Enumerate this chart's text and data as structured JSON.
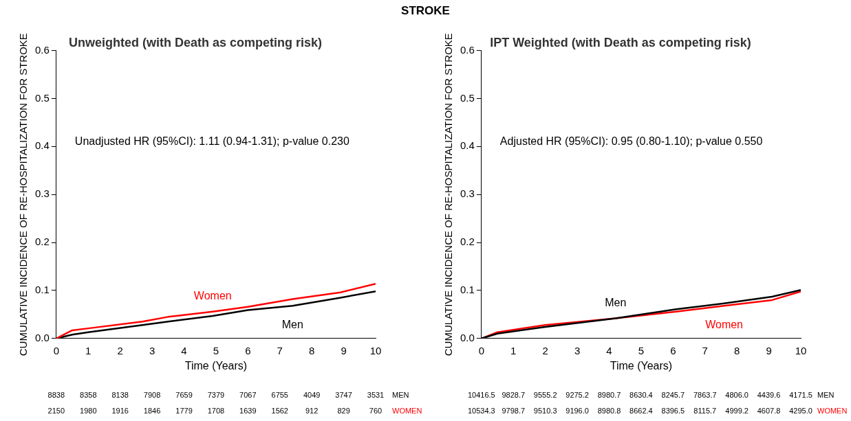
{
  "chart_data": [
    {
      "type": "line",
      "subtitle": "Unweighted (with Death as competing risk)",
      "xlabel": "Time (Years)",
      "ylabel": "CUMULATIVE INCIDENCE OF RE-HOSPITALIZATION FOR STROKE",
      "xlim": [
        0,
        10
      ],
      "xticks": [
        0,
        1,
        2,
        3,
        4,
        5,
        6,
        7,
        8,
        9,
        10
      ],
      "ylim": [
        0,
        0.6
      ],
      "yticks": [
        {
          "value": 0,
          "label": "0.0"
        },
        0.1,
        0.2,
        0.3,
        0.4,
        0.5,
        0.6
      ],
      "grid": false,
      "legend": false,
      "marker": "none",
      "line_style": "solid",
      "x": [
        0,
        0.5,
        1,
        2.7,
        3.5,
        4.9,
        6,
        7.4,
        8.9,
        10
      ],
      "series": [
        {
          "name": "Women",
          "color": "#ff0000",
          "values": [
            0,
            0.017,
            0.021,
            0.035,
            0.045,
            0.056,
            0.066,
            0.082,
            0.096,
            0.114
          ]
        },
        {
          "name": "Men",
          "color": "#000000",
          "values": [
            0,
            0.008,
            0.013,
            0.028,
            0.035,
            0.047,
            0.059,
            0.068,
            0.085,
            0.098
          ]
        }
      ],
      "annotations": [
        "STROKE",
        "Unadjusted HR (95%CI): 1.11 (0.94-1.31); p-value 0.230",
        "8838",
        "8358",
        "8138",
        "7908",
        "7659",
        "7379",
        "7067",
        "6755",
        "4049",
        "3747",
        "3531",
        "MEN",
        "2150",
        "1980",
        "1916",
        "1846",
        "1779",
        "1708",
        "1639",
        "1562",
        "912",
        "829",
        "760",
        "WOMEN"
      ]
    },
    {
      "type": "line",
      "subtitle": "IPT Weighted (with Death as competing risk)",
      "xlabel": "Time (Years)",
      "ylabel": "CUMULATIVE INCIDENCE OF RE-HOSPITALIZATION FOR STROKE",
      "xlim": [
        0,
        10
      ],
      "xticks": [
        0,
        1,
        2,
        3,
        4,
        5,
        6,
        7,
        8,
        9,
        10
      ],
      "ylim": [
        0,
        0.6
      ],
      "yticks": [
        {
          "value": 0,
          "label": "0.0"
        },
        0.1,
        0.2,
        0.3,
        0.4,
        0.5,
        0.6
      ],
      "grid": false,
      "legend": false,
      "marker": "none",
      "line_style": "solid",
      "x": [
        0,
        0.5,
        2,
        4.2,
        6.1,
        7.6,
        9.1,
        10
      ],
      "series": [
        {
          "name": "Men",
          "color": "#000000",
          "values": [
            0,
            0.01,
            0.024,
            0.042,
            0.061,
            0.073,
            0.087,
            0.101
          ]
        },
        {
          "name": "Women",
          "color": "#ff0000",
          "values": [
            0,
            0.013,
            0.028,
            0.042,
            0.056,
            0.068,
            0.08,
            0.098
          ]
        }
      ],
      "annotations": [
        "Adjusted HR (95%CI): 0.95 (0.80-1.10); p-value 0.550",
        "10416.5",
        "9828.7",
        "9555.2",
        "9275.2",
        "8980.7",
        "8630.4",
        "8245.7",
        "7863.7",
        "4806.0",
        "4439.6",
        "4171.5",
        "MEN",
        "10534.3",
        "9798.7",
        "9510.3",
        "9196.0",
        "8980.8",
        "8662.4",
        "8396.5",
        "8115.7",
        "4999.2",
        "4607.8",
        "4295.0",
        "WOMEN"
      ]
    }
  ]
}
